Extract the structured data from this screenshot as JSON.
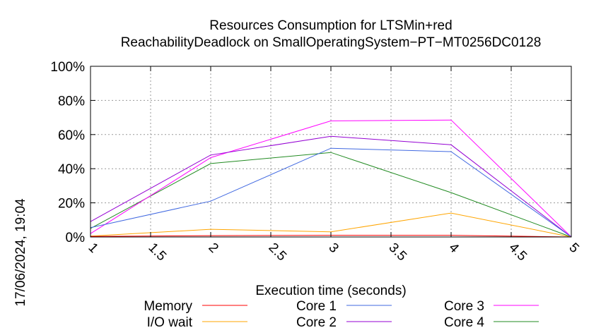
{
  "chart_data": {
    "type": "line",
    "title_line1": "Resources Consumption for LTSMin+red",
    "title_line2": "ReachabilityDeadlock on SmallOperatingSystem−PT−MT0256DC0128",
    "xlabel": "Execution time (seconds)",
    "ylabel": "",
    "timestamp": "17/06/2024, 19:04",
    "xlim": [
      1,
      5
    ],
    "ylim": [
      0,
      100
    ],
    "x_ticks": [
      "1",
      "1.5",
      "2",
      "2.5",
      "3",
      "3.5",
      "4",
      "4.5",
      "5"
    ],
    "y_ticks": [
      "0%",
      "20%",
      "40%",
      "60%",
      "80%",
      "100%"
    ],
    "grid": true,
    "legend_position": "bottom",
    "series": [
      {
        "name": "Memory",
        "color": "#ff0000",
        "x": [
          1,
          2,
          3,
          4,
          5
        ],
        "y": [
          0.3,
          0.8,
          1.0,
          1.0,
          0
        ]
      },
      {
        "name": "I/O wait",
        "color": "#ffa500",
        "x": [
          1,
          2,
          3,
          4,
          5
        ],
        "y": [
          0.5,
          4.5,
          3.0,
          14.0,
          0
        ]
      },
      {
        "name": "Core 1",
        "color": "#4169e1",
        "x": [
          1,
          2,
          3,
          4,
          5
        ],
        "y": [
          5.5,
          21.0,
          52.0,
          50.0,
          0
        ]
      },
      {
        "name": "Core 2",
        "color": "#9400d3",
        "x": [
          1,
          2,
          3,
          4,
          5
        ],
        "y": [
          9.0,
          48.0,
          59.0,
          54.0,
          0
        ]
      },
      {
        "name": "Core 3",
        "color": "#ff00ff",
        "x": [
          1,
          2,
          3,
          4,
          5
        ],
        "y": [
          2.0,
          46.5,
          68.0,
          68.5,
          0
        ]
      },
      {
        "name": "Core 4",
        "color": "#228b22",
        "x": [
          1,
          2,
          3,
          4,
          5
        ],
        "y": [
          5.0,
          43.0,
          49.5,
          26.0,
          0
        ]
      }
    ]
  }
}
